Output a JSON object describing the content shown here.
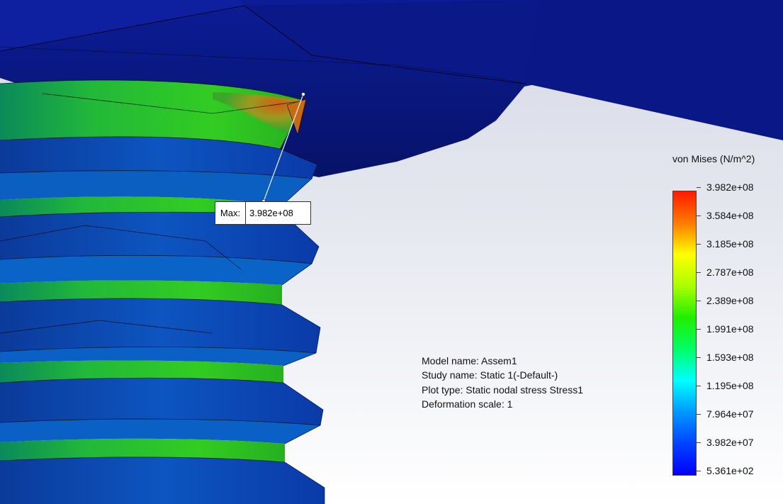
{
  "colors": {
    "background_top": "#d6d8e6",
    "background_bottom": "#ffffff",
    "nut_blue": "#0b1a8a",
    "stress_max": "#ff1a00",
    "stress_min": "#0000ff"
  },
  "max_marker": {
    "label": "Max:",
    "value": "3.982e+08"
  },
  "study_info": {
    "model_name": "Model name: Assem1",
    "study_name": "Study name: Static 1(-Default-)",
    "plot_type": "Plot type: Static nodal stress Stress1",
    "deformation_scale": "Deformation scale: 1"
  },
  "legend": {
    "title": "von Mises (N/m^2)",
    "colormap": [
      "#ff1a00",
      "#ff7a00",
      "#ffff00",
      "#aaff00",
      "#22ee00",
      "#00ff66",
      "#00ffff",
      "#0099ff",
      "#0044ff",
      "#0000ff"
    ],
    "ticks": [
      "3.982e+08",
      "3.584e+08",
      "3.185e+08",
      "2.787e+08",
      "2.389e+08",
      "1.991e+08",
      "1.593e+08",
      "1.195e+08",
      "7.964e+07",
      "3.982e+07",
      "5.361e+02"
    ]
  }
}
